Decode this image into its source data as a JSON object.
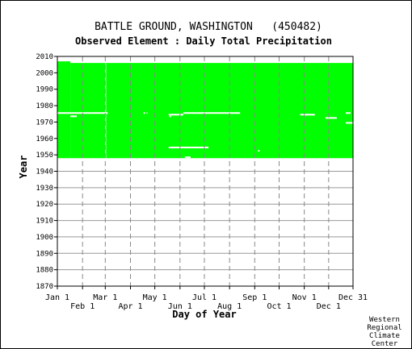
{
  "chart_data": {
    "type": "heatmap",
    "title": "BATTLE GROUND, WASHINGTON   (450482)",
    "subtitle": "Observed Element : Daily Total Precipitation",
    "xlabel": "Day of Year",
    "ylabel": "Year",
    "credit": [
      "Western",
      "Regional",
      "Climate",
      "Center"
    ],
    "x_ticks_top": [
      "Jan 1",
      "Mar 1",
      "May 1",
      "Jul 1",
      "Sep 1",
      "Nov 1",
      "Dec 31"
    ],
    "x_ticks_bottom": [
      "Feb 1",
      "Apr 1",
      "Jun 1",
      "Aug 1",
      "Oct 1",
      "Dec 1"
    ],
    "x_tick_days_top": [
      1,
      60,
      121,
      182,
      244,
      305,
      365
    ],
    "x_tick_days_bottom": [
      32,
      91,
      152,
      213,
      274,
      335
    ],
    "ylim": [
      1870,
      2010
    ],
    "y_ticks": [
      "2010",
      "2000",
      "1990",
      "1980",
      "1970",
      "1960",
      "1950",
      "1940",
      "1930",
      "1920",
      "1910",
      "1900",
      "1890",
      "1880",
      "1870"
    ],
    "xlim": [
      1,
      365
    ],
    "fill_color": "#00ff00",
    "missing_color": "#ffffff",
    "coverage": [
      {
        "day_start": 1,
        "day_end": 17,
        "year_start": 1948,
        "year_end": 2006
      },
      {
        "day_start": 17,
        "day_end": 365,
        "year_start": 1948,
        "year_end": 2005
      }
    ],
    "gaps": [
      {
        "day_start": 1,
        "day_end": 33,
        "year": 1975
      },
      {
        "day_start": 33,
        "day_end": 63,
        "year": 1975
      },
      {
        "day_start": 17,
        "day_end": 25,
        "year": 1973
      },
      {
        "day_start": 60,
        "day_end": 61,
        "year_start": 1948,
        "year_end": 2005
      },
      {
        "day_start": 107,
        "day_end": 109,
        "year": 1975
      },
      {
        "day_start": 111,
        "day_end": 112,
        "year": 1975
      },
      {
        "day_start": 138,
        "day_end": 156,
        "year": 1974
      },
      {
        "day_start": 139,
        "day_end": 141,
        "year": 1973
      },
      {
        "day_start": 156,
        "day_end": 226,
        "year": 1975
      },
      {
        "day_start": 138,
        "day_end": 187,
        "year": 1954
      },
      {
        "day_start": 158,
        "day_end": 165,
        "year": 1948
      },
      {
        "day_start": 248,
        "day_end": 250,
        "year": 1952
      },
      {
        "day_start": 300,
        "day_end": 318,
        "year": 1974
      },
      {
        "day_start": 331,
        "day_end": 345,
        "year": 1972
      },
      {
        "day_start": 356,
        "day_end": 362,
        "year": 1975
      },
      {
        "day_start": 356,
        "day_end": 365,
        "year": 1969
      }
    ]
  }
}
